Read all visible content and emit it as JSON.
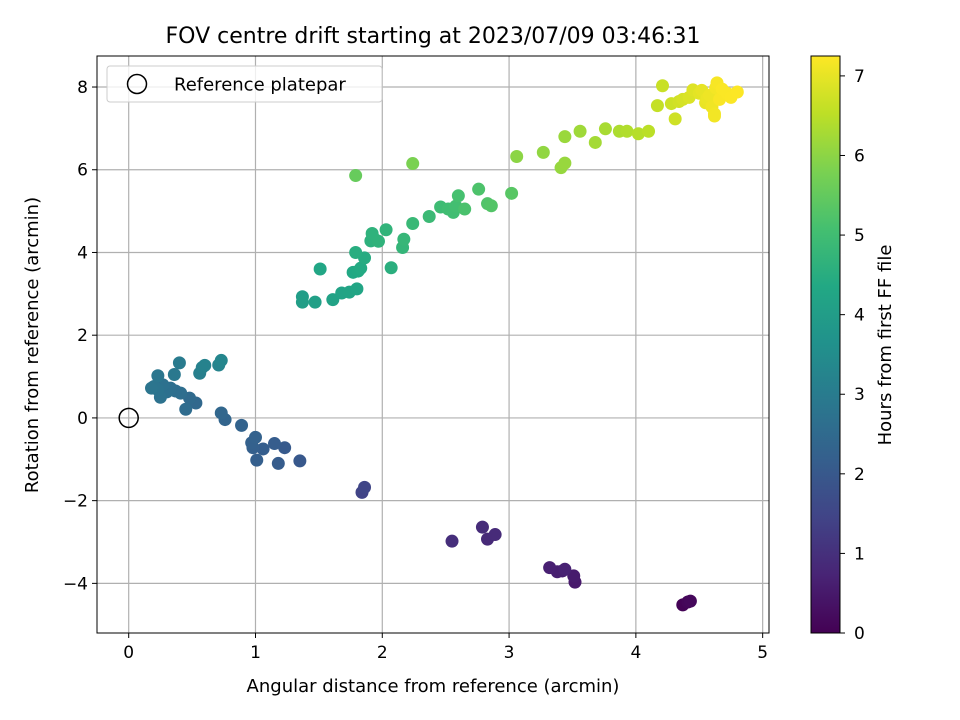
{
  "chart_data": {
    "type": "scatter",
    "title": "FOV centre drift starting at 2023/07/09 03:46:31",
    "xlabel": "Angular distance from reference (arcmin)",
    "ylabel": "Rotation from reference (arcmin)",
    "xlim": [
      -0.25,
      5.05
    ],
    "ylim": [
      -5.2,
      8.75
    ],
    "xticks": [
      0,
      1,
      2,
      3,
      4,
      5
    ],
    "yticks": [
      -4,
      -2,
      0,
      2,
      4,
      6,
      8
    ],
    "grid": true,
    "legend": {
      "placement": "top-left",
      "entries": [
        "Reference platepar"
      ]
    },
    "reference_point": {
      "label": "Reference platepar",
      "x": 0,
      "y": 0,
      "marker": "open-circle"
    },
    "colorbar": {
      "label": "Hours from first FF file",
      "range": [
        0,
        7.25
      ],
      "ticks": [
        0,
        1,
        2,
        3,
        4,
        5,
        6,
        7
      ],
      "colormap": "viridis"
    },
    "points": [
      {
        "x": 4.37,
        "y": -4.52,
        "h": 0.05
      },
      {
        "x": 4.41,
        "y": -4.45,
        "h": 0.1
      },
      {
        "x": 4.43,
        "y": -4.43,
        "h": 0.15
      },
      {
        "x": 3.52,
        "y": -3.97,
        "h": 0.5
      },
      {
        "x": 3.51,
        "y": -3.82,
        "h": 0.55
      },
      {
        "x": 3.42,
        "y": -3.7,
        "h": 0.6
      },
      {
        "x": 3.38,
        "y": -3.72,
        "h": 0.62
      },
      {
        "x": 3.32,
        "y": -3.62,
        "h": 0.65
      },
      {
        "x": 3.44,
        "y": -3.66,
        "h": 0.68
      },
      {
        "x": 2.83,
        "y": -2.93,
        "h": 0.85
      },
      {
        "x": 2.89,
        "y": -2.82,
        "h": 0.88
      },
      {
        "x": 2.79,
        "y": -2.64,
        "h": 0.9
      },
      {
        "x": 2.55,
        "y": -2.98,
        "h": 0.95
      },
      {
        "x": 1.84,
        "y": -1.8,
        "h": 1.45
      },
      {
        "x": 1.86,
        "y": -1.68,
        "h": 1.5
      },
      {
        "x": 1.35,
        "y": -1.04,
        "h": 2.0
      },
      {
        "x": 1.23,
        "y": -0.72,
        "h": 2.05
      },
      {
        "x": 1.18,
        "y": -1.1,
        "h": 2.1
      },
      {
        "x": 1.15,
        "y": -0.62,
        "h": 2.12
      },
      {
        "x": 1.06,
        "y": -0.75,
        "h": 2.15
      },
      {
        "x": 1.01,
        "y": -1.02,
        "h": 2.18
      },
      {
        "x": 0.98,
        "y": -0.72,
        "h": 2.2
      },
      {
        "x": 0.97,
        "y": -0.6,
        "h": 2.22
      },
      {
        "x": 1.0,
        "y": -0.47,
        "h": 2.25
      },
      {
        "x": 0.89,
        "y": -0.18,
        "h": 2.3
      },
      {
        "x": 0.76,
        "y": -0.04,
        "h": 2.35
      },
      {
        "x": 0.73,
        "y": 0.12,
        "h": 2.4
      },
      {
        "x": 0.53,
        "y": 0.36,
        "h": 2.45
      },
      {
        "x": 0.48,
        "y": 0.48,
        "h": 2.5
      },
      {
        "x": 0.45,
        "y": 0.21,
        "h": 2.55
      },
      {
        "x": 0.41,
        "y": 0.6,
        "h": 2.6
      },
      {
        "x": 0.37,
        "y": 0.65,
        "h": 2.62
      },
      {
        "x": 0.33,
        "y": 0.72,
        "h": 2.65
      },
      {
        "x": 0.3,
        "y": 0.63,
        "h": 2.68
      },
      {
        "x": 0.27,
        "y": 0.8,
        "h": 2.7
      },
      {
        "x": 0.25,
        "y": 0.5,
        "h": 2.72
      },
      {
        "x": 0.23,
        "y": 0.68,
        "h": 2.75
      },
      {
        "x": 0.2,
        "y": 0.76,
        "h": 2.78
      },
      {
        "x": 0.18,
        "y": 0.72,
        "h": 2.8
      },
      {
        "x": 0.23,
        "y": 1.02,
        "h": 2.85
      },
      {
        "x": 0.36,
        "y": 1.05,
        "h": 2.9
      },
      {
        "x": 0.4,
        "y": 1.33,
        "h": 3.0
      },
      {
        "x": 0.56,
        "y": 1.08,
        "h": 3.1
      },
      {
        "x": 0.58,
        "y": 1.22,
        "h": 3.15
      },
      {
        "x": 0.6,
        "y": 1.27,
        "h": 3.2
      },
      {
        "x": 0.71,
        "y": 1.28,
        "h": 3.25
      },
      {
        "x": 0.73,
        "y": 1.39,
        "h": 3.3
      },
      {
        "x": 1.37,
        "y": 2.93,
        "h": 4.0
      },
      {
        "x": 1.37,
        "y": 2.8,
        "h": 4.05
      },
      {
        "x": 1.47,
        "y": 2.8,
        "h": 4.1
      },
      {
        "x": 1.61,
        "y": 2.86,
        "h": 4.15
      },
      {
        "x": 1.68,
        "y": 3.02,
        "h": 4.2
      },
      {
        "x": 1.74,
        "y": 3.04,
        "h": 4.22
      },
      {
        "x": 1.8,
        "y": 3.12,
        "h": 4.25
      },
      {
        "x": 1.51,
        "y": 3.6,
        "h": 4.3
      },
      {
        "x": 1.77,
        "y": 3.52,
        "h": 4.35
      },
      {
        "x": 1.81,
        "y": 3.55,
        "h": 4.38
      },
      {
        "x": 1.83,
        "y": 3.62,
        "h": 4.4
      },
      {
        "x": 1.86,
        "y": 3.87,
        "h": 4.45
      },
      {
        "x": 1.79,
        "y": 4.0,
        "h": 4.5
      },
      {
        "x": 2.07,
        "y": 3.63,
        "h": 4.55
      },
      {
        "x": 1.91,
        "y": 4.28,
        "h": 4.6
      },
      {
        "x": 1.94,
        "y": 4.32,
        "h": 4.62
      },
      {
        "x": 1.92,
        "y": 4.46,
        "h": 4.65
      },
      {
        "x": 1.97,
        "y": 4.27,
        "h": 4.68
      },
      {
        "x": 2.03,
        "y": 4.55,
        "h": 4.7
      },
      {
        "x": 2.16,
        "y": 4.12,
        "h": 4.75
      },
      {
        "x": 2.17,
        "y": 4.32,
        "h": 4.8
      },
      {
        "x": 2.24,
        "y": 4.7,
        "h": 4.85
      },
      {
        "x": 2.37,
        "y": 4.87,
        "h": 4.9
      },
      {
        "x": 2.46,
        "y": 5.1,
        "h": 4.95
      },
      {
        "x": 2.52,
        "y": 5.05,
        "h": 5.0
      },
      {
        "x": 2.56,
        "y": 4.97,
        "h": 5.02
      },
      {
        "x": 2.58,
        "y": 5.12,
        "h": 5.05
      },
      {
        "x": 2.6,
        "y": 5.37,
        "h": 5.1
      },
      {
        "x": 2.65,
        "y": 5.05,
        "h": 5.15
      },
      {
        "x": 2.76,
        "y": 5.53,
        "h": 5.2
      },
      {
        "x": 2.83,
        "y": 5.18,
        "h": 5.25
      },
      {
        "x": 2.86,
        "y": 5.13,
        "h": 5.28
      },
      {
        "x": 3.02,
        "y": 5.43,
        "h": 5.35
      },
      {
        "x": 1.79,
        "y": 5.86,
        "h": 5.55
      },
      {
        "x": 2.24,
        "y": 6.15,
        "h": 5.8
      },
      {
        "x": 3.06,
        "y": 6.32,
        "h": 6.0
      },
      {
        "x": 3.27,
        "y": 6.42,
        "h": 6.05
      },
      {
        "x": 3.41,
        "y": 6.05,
        "h": 6.1
      },
      {
        "x": 3.44,
        "y": 6.16,
        "h": 6.12
      },
      {
        "x": 3.44,
        "y": 6.8,
        "h": 6.15
      },
      {
        "x": 3.56,
        "y": 6.93,
        "h": 6.2
      },
      {
        "x": 3.68,
        "y": 6.66,
        "h": 6.25
      },
      {
        "x": 3.76,
        "y": 6.99,
        "h": 6.3
      },
      {
        "x": 3.87,
        "y": 6.93,
        "h": 6.35
      },
      {
        "x": 3.93,
        "y": 6.93,
        "h": 6.4
      },
      {
        "x": 4.02,
        "y": 6.87,
        "h": 6.45
      },
      {
        "x": 4.1,
        "y": 6.93,
        "h": 6.5
      },
      {
        "x": 4.17,
        "y": 7.55,
        "h": 6.6
      },
      {
        "x": 4.21,
        "y": 8.03,
        "h": 6.65
      },
      {
        "x": 4.28,
        "y": 7.6,
        "h": 6.7
      },
      {
        "x": 4.31,
        "y": 7.23,
        "h": 6.72
      },
      {
        "x": 4.34,
        "y": 7.65,
        "h": 6.75
      },
      {
        "x": 4.37,
        "y": 7.7,
        "h": 6.8
      },
      {
        "x": 4.42,
        "y": 7.75,
        "h": 6.85
      },
      {
        "x": 4.45,
        "y": 7.93,
        "h": 6.9
      },
      {
        "x": 4.5,
        "y": 7.85,
        "h": 6.95
      },
      {
        "x": 4.52,
        "y": 7.92,
        "h": 7.0
      },
      {
        "x": 4.55,
        "y": 7.62,
        "h": 7.02
      },
      {
        "x": 4.56,
        "y": 7.72,
        "h": 7.05
      },
      {
        "x": 4.58,
        "y": 7.8,
        "h": 7.08
      },
      {
        "x": 4.6,
        "y": 7.52,
        "h": 7.1
      },
      {
        "x": 4.62,
        "y": 7.35,
        "h": 7.12
      },
      {
        "x": 4.62,
        "y": 7.3,
        "h": 7.13
      },
      {
        "x": 4.63,
        "y": 7.98,
        "h": 7.15
      },
      {
        "x": 4.64,
        "y": 8.1,
        "h": 7.18
      },
      {
        "x": 4.66,
        "y": 7.7,
        "h": 7.2
      },
      {
        "x": 4.68,
        "y": 7.95,
        "h": 7.22
      },
      {
        "x": 4.72,
        "y": 7.85,
        "h": 7.22
      },
      {
        "x": 4.75,
        "y": 7.75,
        "h": 7.23
      },
      {
        "x": 4.8,
        "y": 7.88,
        "h": 7.24
      }
    ]
  }
}
